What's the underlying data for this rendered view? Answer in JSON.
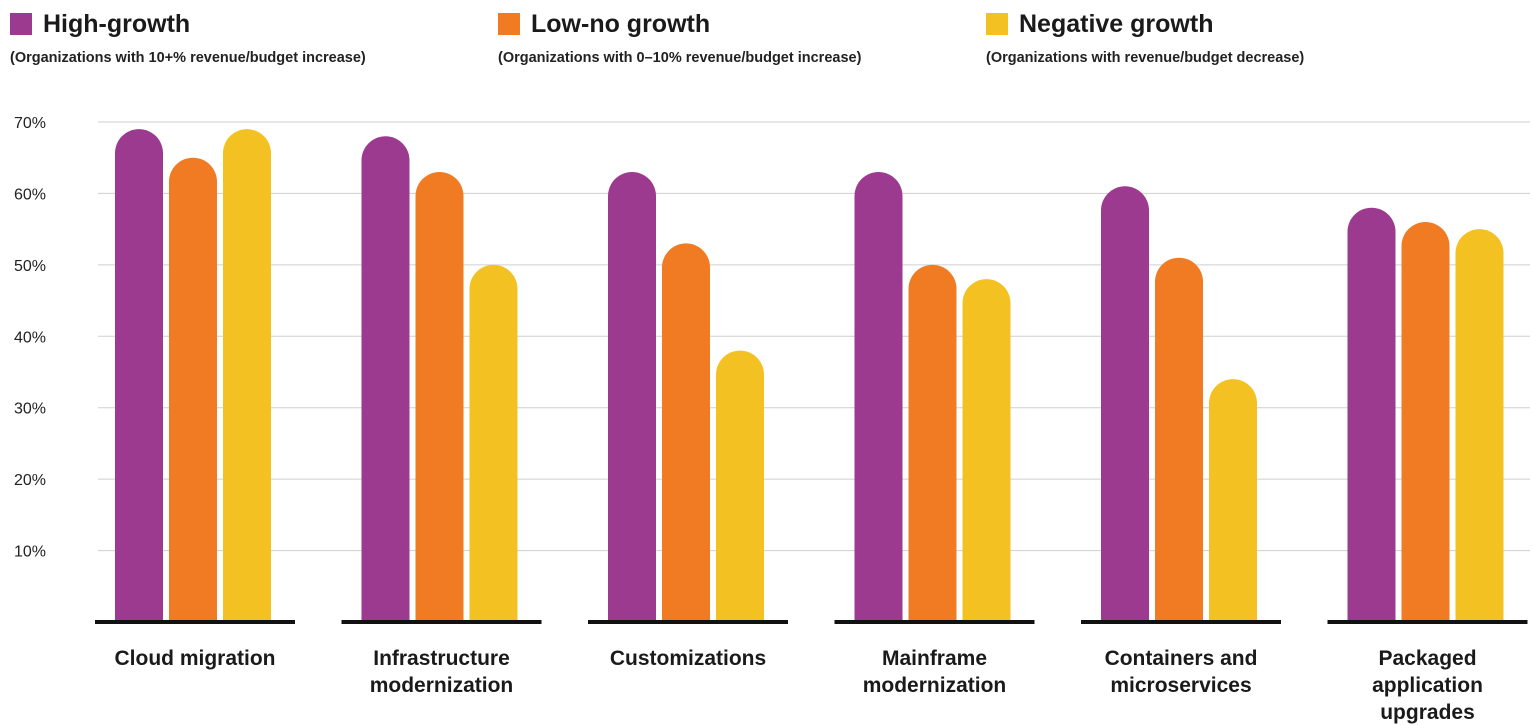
{
  "legend": [
    {
      "name": "High-growth",
      "note": "(Organizations with 10+% revenue/budget increase)",
      "color": "#9B3A8E"
    },
    {
      "name": "Low-no growth",
      "note": "(Organizations with 0–10% revenue/budget increase)",
      "color": "#F07B22"
    },
    {
      "name": "Negative growth",
      "note": "(Organizations with revenue/budget decrease)",
      "color": "#F4C122"
    }
  ],
  "chart_data": {
    "type": "bar",
    "title": "",
    "xlabel": "",
    "ylabel": "",
    "ylim": [
      0,
      70
    ],
    "yticks": [
      10,
      20,
      30,
      40,
      50,
      60,
      70
    ],
    "ytick_labels": [
      "10%",
      "20%",
      "30%",
      "40%",
      "50%",
      "60%",
      "70%"
    ],
    "grid": true,
    "legend_position": "top",
    "categories": [
      [
        "Cloud migration"
      ],
      [
        "Infrastructure",
        "modernization"
      ],
      [
        "Customizations"
      ],
      [
        "Mainframe",
        "modernization"
      ],
      [
        "Containers and",
        "microservices"
      ],
      [
        "Packaged",
        "application",
        "upgrades"
      ]
    ],
    "series": [
      {
        "name": "High-growth",
        "color": "#9B3A8E",
        "values": [
          69,
          68,
          63,
          63,
          61,
          58
        ]
      },
      {
        "name": "Low-no growth",
        "color": "#F07B22",
        "values": [
          65,
          63,
          53,
          50,
          51,
          56
        ]
      },
      {
        "name": "Negative growth",
        "color": "#F4C122",
        "values": [
          69,
          50,
          38,
          48,
          34,
          55
        ]
      }
    ]
  }
}
